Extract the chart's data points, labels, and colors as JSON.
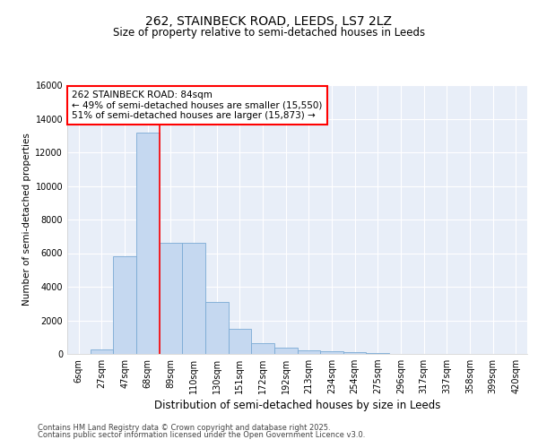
{
  "title": "262, STAINBECK ROAD, LEEDS, LS7 2LZ",
  "subtitle": "Size of property relative to semi-detached houses in Leeds",
  "xlabel": "Distribution of semi-detached houses by size in Leeds",
  "ylabel": "Number of semi-detached properties",
  "categories": [
    "6sqm",
    "27sqm",
    "47sqm",
    "68sqm",
    "89sqm",
    "110sqm",
    "130sqm",
    "151sqm",
    "172sqm",
    "192sqm",
    "213sqm",
    "234sqm",
    "254sqm",
    "275sqm",
    "296sqm",
    "317sqm",
    "337sqm",
    "358sqm",
    "399sqm",
    "420sqm"
  ],
  "values": [
    0,
    280,
    5800,
    13200,
    6600,
    6600,
    3100,
    1480,
    620,
    380,
    220,
    160,
    100,
    50,
    25,
    15,
    10,
    5,
    2,
    1
  ],
  "bar_color": "#c5d8f0",
  "bar_edge_color": "#7aaad4",
  "vline_x_index": 3,
  "annotation_title": "262 STAINBECK ROAD: 84sqm",
  "annotation_line1": "← 49% of semi-detached houses are smaller (15,550)",
  "annotation_line2": "51% of semi-detached houses are larger (15,873) →",
  "vline_color": "red",
  "footer_line1": "Contains HM Land Registry data © Crown copyright and database right 2025.",
  "footer_line2": "Contains public sector information licensed under the Open Government Licence v3.0.",
  "ylim": [
    0,
    16000
  ],
  "yticks": [
    0,
    2000,
    4000,
    6000,
    8000,
    10000,
    12000,
    14000,
    16000
  ],
  "bg_color": "#e8eef8",
  "fig_bg_color": "#ffffff",
  "grid_color": "#ffffff",
  "title_fontsize": 10,
  "subtitle_fontsize": 8.5,
  "tick_fontsize": 7,
  "ylabel_fontsize": 7.5,
  "xlabel_fontsize": 8.5,
  "footer_fontsize": 6.0,
  "annot_fontsize": 7.5
}
